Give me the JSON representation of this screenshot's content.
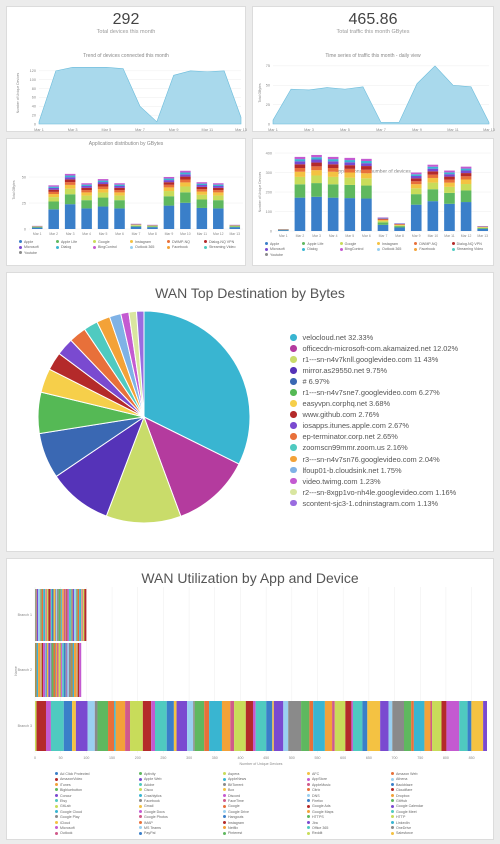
{
  "cards": [
    {
      "value": "292",
      "label": "Total devices this month"
    },
    {
      "value": "465.86",
      "label": "Total traffic this month GBytes"
    }
  ],
  "chart_data": [
    {
      "type": "area",
      "title": "Trend of devices connected this month",
      "ylabel": "Number of Unique Devices",
      "x": [
        "Mar 1",
        "Mar 2",
        "Mar 3",
        "Mar 4",
        "Mar 5",
        "Mar 6",
        "Mar 7",
        "Mar 8",
        "Mar 9",
        "Mar 10",
        "Mar 11",
        "Mar 12",
        "Mar 13"
      ],
      "xticks": [
        "Mar 1",
        "Mar 3",
        "Mar 5",
        "Mar 7",
        "Mar 9",
        "Mar 11",
        "Mar 13"
      ],
      "yticks": [
        "0",
        "20",
        "40",
        "60",
        "80",
        "100",
        "120"
      ],
      "ylim": [
        0,
        140
      ],
      "values": [
        5,
        120,
        128,
        128,
        128,
        125,
        40,
        5,
        110,
        120,
        118,
        120,
        15
      ]
    },
    {
      "type": "area",
      "title": "Time series of traffic this month - daily view",
      "ylabel": "Total GBytes",
      "x": [
        "Mar 1",
        "Mar 2",
        "Mar 3",
        "Mar 4",
        "Mar 5",
        "Mar 6",
        "Mar 7",
        "Mar 8",
        "Mar 9",
        "Mar 10",
        "Mar 11",
        "Mar 12",
        "Mar 13"
      ],
      "xticks": [
        "Mar 1",
        "Mar 3",
        "Mar 5",
        "Mar 7",
        "Mar 9",
        "Mar 11",
        "Mar 13"
      ],
      "yticks": [
        "0",
        "25",
        "50",
        "75"
      ],
      "ylim": [
        0,
        80
      ],
      "values": [
        5,
        45,
        44,
        47,
        45,
        48,
        2,
        2,
        52,
        75,
        50,
        48,
        2
      ]
    },
    {
      "type": "bar",
      "stacked": true,
      "title": "Application distribution by GBytes",
      "ylabel": "Total GBytes",
      "categories": [
        "Mar 1",
        "Mar 2",
        "Mar 3",
        "Mar 4",
        "Mar 5",
        "Mar 6",
        "Mar 7",
        "Mar 8",
        "Mar 9",
        "Mar 10",
        "Mar 11",
        "Mar 12",
        "Mar 13"
      ],
      "xticks": [
        "Mar 1",
        "Mar 2",
        "Mar 3",
        "Mar 4",
        "Mar 5",
        "Mar 6",
        "Mar 7",
        "Mar 8",
        "Mar 9",
        "Mar 10",
        "Mar 11",
        "Mar 12",
        "Mar 13"
      ],
      "yticks": [
        "0",
        "25",
        "50"
      ],
      "ylim": [
        0,
        75
      ],
      "totals": [
        3,
        42,
        53,
        44,
        48,
        44,
        5,
        4,
        50,
        56,
        45,
        44,
        4
      ]
    },
    {
      "type": "bar",
      "stacked": true,
      "title": "Applications by number of devices",
      "ylabel": "Number of Unique Devices",
      "categories": [
        "Mar 1",
        "Mar 2",
        "Mar 3",
        "Mar 4",
        "Mar 5",
        "Mar 6",
        "Mar 7",
        "Mar 8",
        "Mar 9",
        "Mar 10",
        "Mar 11",
        "Mar 12",
        "Mar 13"
      ],
      "xticks": [
        "Mar 1",
        "Mar 2",
        "Mar 3",
        "Mar 4",
        "Mar 5",
        "Mar 6",
        "Mar 7",
        "Mar 8",
        "Mar 9",
        "Mar 10",
        "Mar 11",
        "Mar 12",
        "Mar 13"
      ],
      "yticks": [
        "0",
        "100",
        "200",
        "300",
        "400"
      ],
      "ylim": [
        0,
        400
      ],
      "totals": [
        10,
        380,
        390,
        380,
        375,
        370,
        70,
        40,
        300,
        340,
        310,
        330,
        25
      ]
    },
    {
      "type": "pie",
      "title": "WAN Top Destination by Bytes",
      "slices": [
        {
          "label": "velocloud.net 32.33%",
          "value": 32.33,
          "color": "#39b5d1"
        },
        {
          "label": "officecdn-microsoft-com.akamaized.net 12.02%",
          "value": 12.02,
          "color": "#b43b9e"
        },
        {
          "label": "r1---sn-n4v7knll.googlevideo.com 11 43%",
          "value": 11.43,
          "color": "#c9dc6a"
        },
        {
          "label": "mirror.as29550.net 9.75%",
          "value": 9.75,
          "color": "#5533b8"
        },
        {
          "label": "# 6.97%",
          "value": 6.97,
          "color": "#3a68b3"
        },
        {
          "label": "r1---sn-n4v7sne7.googlevideo.com 6.27%",
          "value": 6.27,
          "color": "#55b955"
        },
        {
          "label": "easyvpn.corphq.net 3.68%",
          "value": 3.68,
          "color": "#f6cf4a"
        },
        {
          "label": "www.github.com 2.76%",
          "value": 2.76,
          "color": "#b42a2a"
        },
        {
          "label": "iosapps.itunes.apple.com 2.67%",
          "value": 2.67,
          "color": "#7a4ad0"
        },
        {
          "label": "ep-terminator.corp.net 2.65%",
          "value": 2.65,
          "color": "#e8703a"
        },
        {
          "label": "zoomscn99mmr.zoom.us 2.16%",
          "value": 2.16,
          "color": "#4fcac0"
        },
        {
          "label": "r3---sn-n4v7sn76.googlevideo.com 2.04%",
          "value": 2.04,
          "color": "#f3a238"
        },
        {
          "label": "lfoup01-b.cloudsink.net 1.75%",
          "value": 1.75,
          "color": "#7fb2e6"
        },
        {
          "label": "video.twimg.com 1.23%",
          "value": 1.23,
          "color": "#c45ad1"
        },
        {
          "label": "r2---sn-8xgp1vo-nh4le.googlevideo.com 1.16%",
          "value": 1.16,
          "color": "#d9e6a0"
        },
        {
          "label": "scontent-sjc3-1.cdninstagram.com 1.13%",
          "value": 1.13,
          "color": "#9a6ce0"
        }
      ]
    },
    {
      "type": "bar",
      "orientation": "horizontal",
      "stacked": true,
      "title": "WAN Utilization by App and Device",
      "xlabel": "Number of Unique Devices",
      "ylabel": "Name",
      "categories": [
        "Branch 1",
        "Branch 2",
        "Branch 3"
      ],
      "xticks": [
        "0",
        "50",
        "100",
        "150",
        "200",
        "250",
        "300",
        "350",
        "400",
        "450",
        "500",
        "550",
        "600",
        "650",
        "700",
        "750",
        "800",
        "850"
      ],
      "xlim": [
        0,
        880
      ],
      "totals": [
        100,
        90,
        880
      ]
    }
  ],
  "mini_legend_a": [
    "Apple",
    "Apple LIfe",
    "Google",
    "Instagram",
    "DWMP-NQ",
    "Dialog-NQ VPN",
    "Microsoft",
    "Dialog",
    "BingControl",
    "Outlook 365",
    "Facebook",
    "Streaming Video",
    "Youtube"
  ],
  "mini_legend_b": [
    "Apple",
    "Apple LIfe",
    "Google",
    "Instagram",
    "DWMP-NQ",
    "Dialog-NQ VPN",
    "Microsoft",
    "Dialog",
    "BingControl",
    "Outlook 365",
    "Facebook",
    "Streaming Video",
    "Youtube"
  ],
  "app_legend": [
    "Ad Click Protected",
    "Aptivity",
    "Aspera",
    "AFC",
    "Amazon Web",
    "AmazonVideo",
    "Apple Web",
    "AppleNews",
    "AppStore",
    "Athena",
    "iTunes",
    "Adobe",
    "BitTorrent",
    "AppleMusic",
    "Backblaze",
    "Bigbluebutton",
    "Cisco",
    "Box",
    "Citrix",
    "Cloudflare",
    "Concur",
    "Crashlytics",
    "Discord",
    "DNS",
    "Dropbox",
    "Etsy",
    "Facebook",
    "FaceTime",
    "Firefox",
    "GitHub",
    "GitLab",
    "Gmail",
    "Google",
    "Google Ads",
    "Google Calendar",
    "Google Cloud",
    "Google Docs",
    "Google Drive",
    "Google Maps",
    "Google Meet",
    "Google Play",
    "Google Photos",
    "Hangouts",
    "HTTPS",
    "HTTP",
    "iCloud",
    "IMAP",
    "Instagram",
    "Jira",
    "LinkedIn",
    "Microsoft",
    "MS Teams",
    "Netflix",
    "Office 365",
    "OneDrive",
    "Outlook",
    "PayPal",
    "Pinterest",
    "Reddit",
    "Salesforce",
    "Signal",
    "Skype",
    "Slack",
    "Snapchat",
    "Spotify",
    "SSH",
    "Steam",
    "TikTok",
    "Twitch",
    "Twitter",
    "Viber",
    "Vimeo",
    "WebEx",
    "WhatsApp",
    "Wikipedia",
    "Windows Update",
    "Xbox",
    "Yahoo",
    "YouTube",
    "Zoom",
    "Zscaler",
    "Telegram",
    "Tumblr",
    "Uber",
    "Waze",
    "Weather",
    "WeChat",
    "Line",
    "Kik",
    "Hulu",
    "Disney+",
    "Prime Video",
    "Quip",
    "Roblox",
    "Shopify",
    "Twilio",
    "Trello",
    "Udemy",
    "Unknown",
    "VPN",
    "WebRTC",
    "Yammer",
    "Zendesk",
    "Zoho"
  ]
}
